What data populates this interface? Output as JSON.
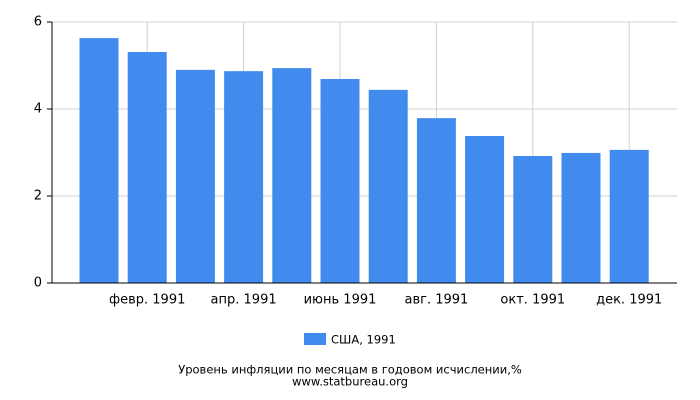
{
  "chart_data": {
    "type": "bar",
    "categories": [
      null,
      "февр. 1991",
      null,
      "апр. 1991",
      null,
      "июнь 1991",
      null,
      "авг. 1991",
      null,
      "окт. 1991",
      null,
      "дек. 1991"
    ],
    "series": [
      {
        "name": "США, 1991",
        "color": "#428bee",
        "values": [
          5.63,
          5.31,
          4.9,
          4.87,
          4.94,
          4.69,
          4.44,
          3.79,
          3.38,
          2.92,
          2.99,
          3.06
        ]
      }
    ],
    "ylim": [
      0,
      6
    ],
    "yticks": [
      0,
      2,
      4,
      6
    ],
    "grid": true,
    "title": "Уровень инфляции по месяцам в годовом исчислении,%",
    "source": "www.statbureau.org"
  }
}
